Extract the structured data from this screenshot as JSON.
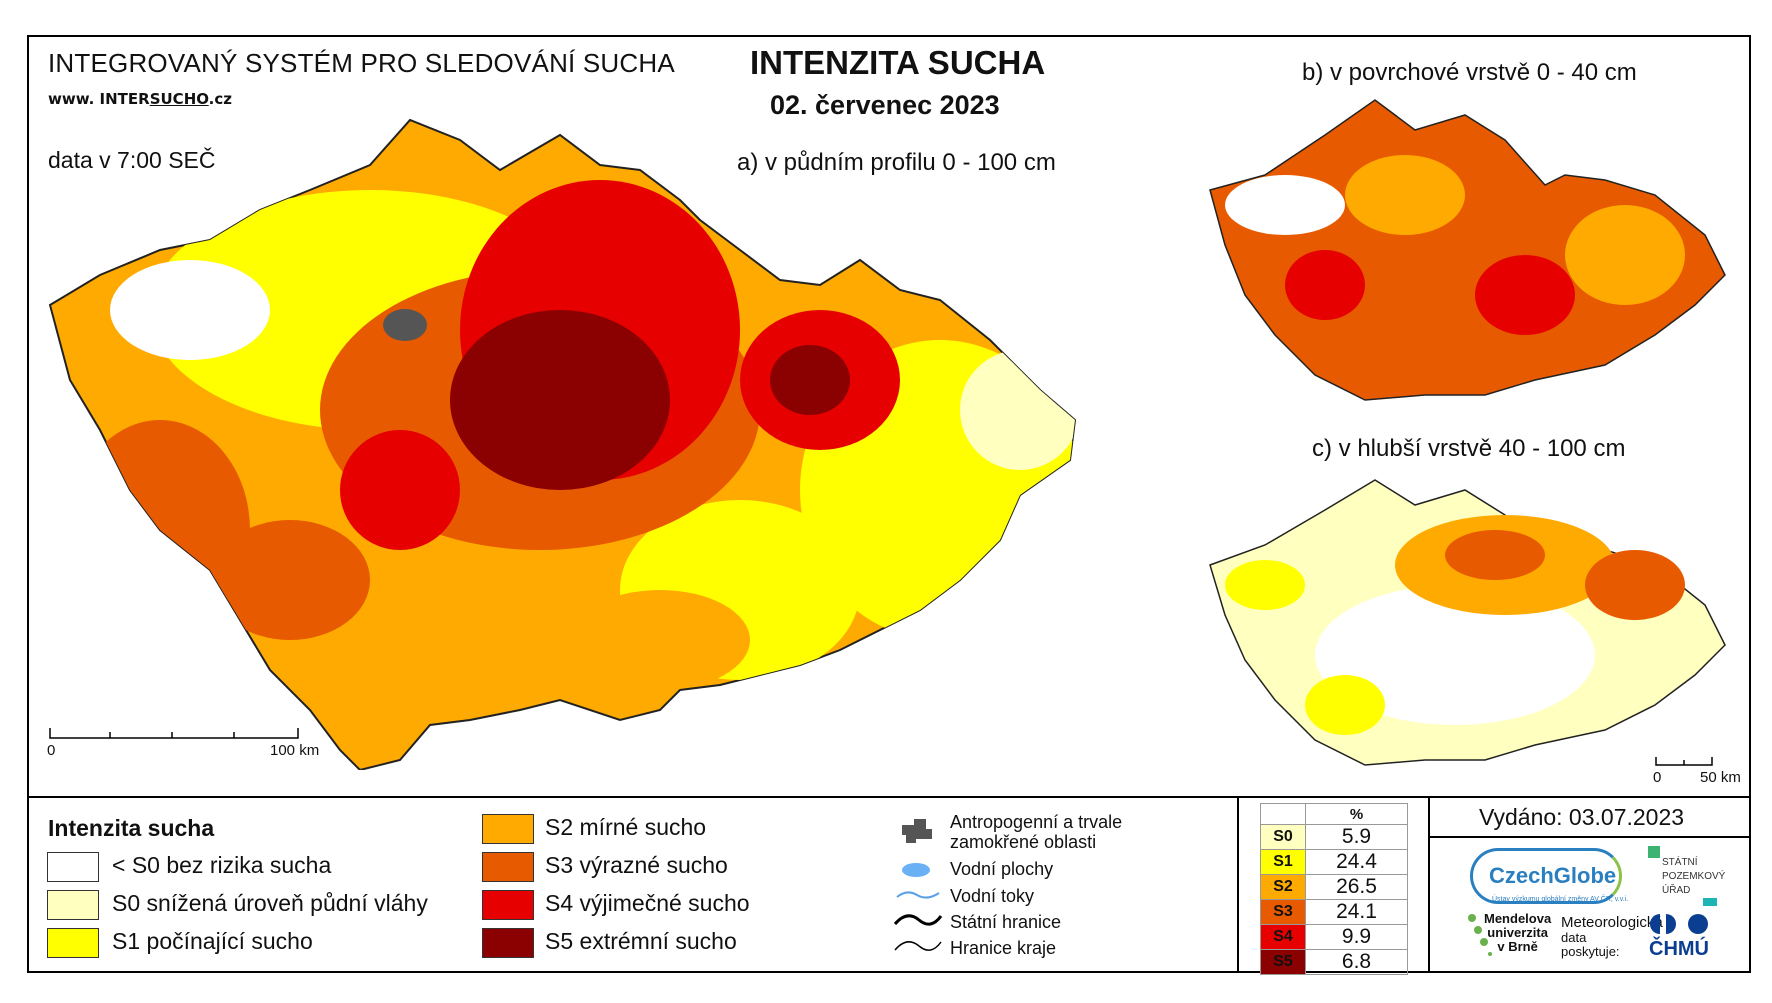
{
  "header": {
    "system_name": "INTEGROVANÝ SYSTÉM PRO SLEDOVÁNÍ SUCHA",
    "url_prefix": "www. INTER",
    "url_underlined": "SUCHO",
    "url_suffix": ".cz",
    "data_time": "data v 7:00 SEČ",
    "title": "INTENZITA SUCHA",
    "date": "02. červenec 2023"
  },
  "maps": {
    "main_label": "a) v půdním profilu 0 - 100 cm",
    "top_label": "b) v povrchové vrstvě 0 - 40 cm",
    "bottom_label": "c) v hlubší vrstvě 40 - 100 cm",
    "main_scale": {
      "start": "0",
      "end": "100 km"
    },
    "small_scale": {
      "start": "0",
      "end": "50 km"
    }
  },
  "legend": {
    "title": "Intenzita sucha",
    "classes": [
      {
        "label": "< S0 bez rizika sucha",
        "color": "#ffffff"
      },
      {
        "label": "S0 snížená úroveň půdní vláhy",
        "color": "#ffffc0"
      },
      {
        "label": "S1 počínající sucho",
        "color": "#ffff00"
      },
      {
        "label": "S2 mírné sucho",
        "color": "#ffaa00"
      },
      {
        "label": "S3 výrazné sucho",
        "color": "#e85a00"
      },
      {
        "label": "S4 výjimečné sucho",
        "color": "#e60000"
      },
      {
        "label": "S5 extrémní sucho",
        "color": "#8b0000"
      }
    ],
    "symbols": {
      "anthropogenic_line1": "Antropogenní a trvale",
      "anthropogenic_line2": "zamokřené oblasti",
      "water_bodies": "Vodní plochy",
      "streams": "Vodní toky",
      "state_border": "Státní hranice",
      "region_border": "Hranice kraje"
    }
  },
  "percent_table": {
    "header": "%",
    "rows": [
      {
        "class": "S0",
        "value": "5.9",
        "color": "#ffffc0"
      },
      {
        "class": "S1",
        "value": "24.4",
        "color": "#ffff00"
      },
      {
        "class": "S2",
        "value": "26.5",
        "color": "#ffaa00"
      },
      {
        "class": "S3",
        "value": "24.1",
        "color": "#e85a00"
      },
      {
        "class": "S4",
        "value": "9.9",
        "color": "#e60000"
      },
      {
        "class": "S5",
        "value": "6.8",
        "color": "#8b0000"
      }
    ]
  },
  "credits": {
    "issued": "Vydáno: 03.07.2023",
    "czechglobe": "CzechGlobe",
    "czechglobe_sub": "Ústav výzkumu globální změny AV ČR, v.v.i.",
    "spu_line1": "STÁTNÍ",
    "spu_line2": "POZEMKOVÝ",
    "spu_line3": "ÚŘAD",
    "mendel_line1": "Mendelova",
    "mendel_line2": "univerzita",
    "mendel_line3": "v Brně",
    "meteo_line1": "Meteorologická",
    "meteo_line2": "data",
    "meteo_line3": "poskytuje:",
    "chmu": "ČHMÚ"
  }
}
